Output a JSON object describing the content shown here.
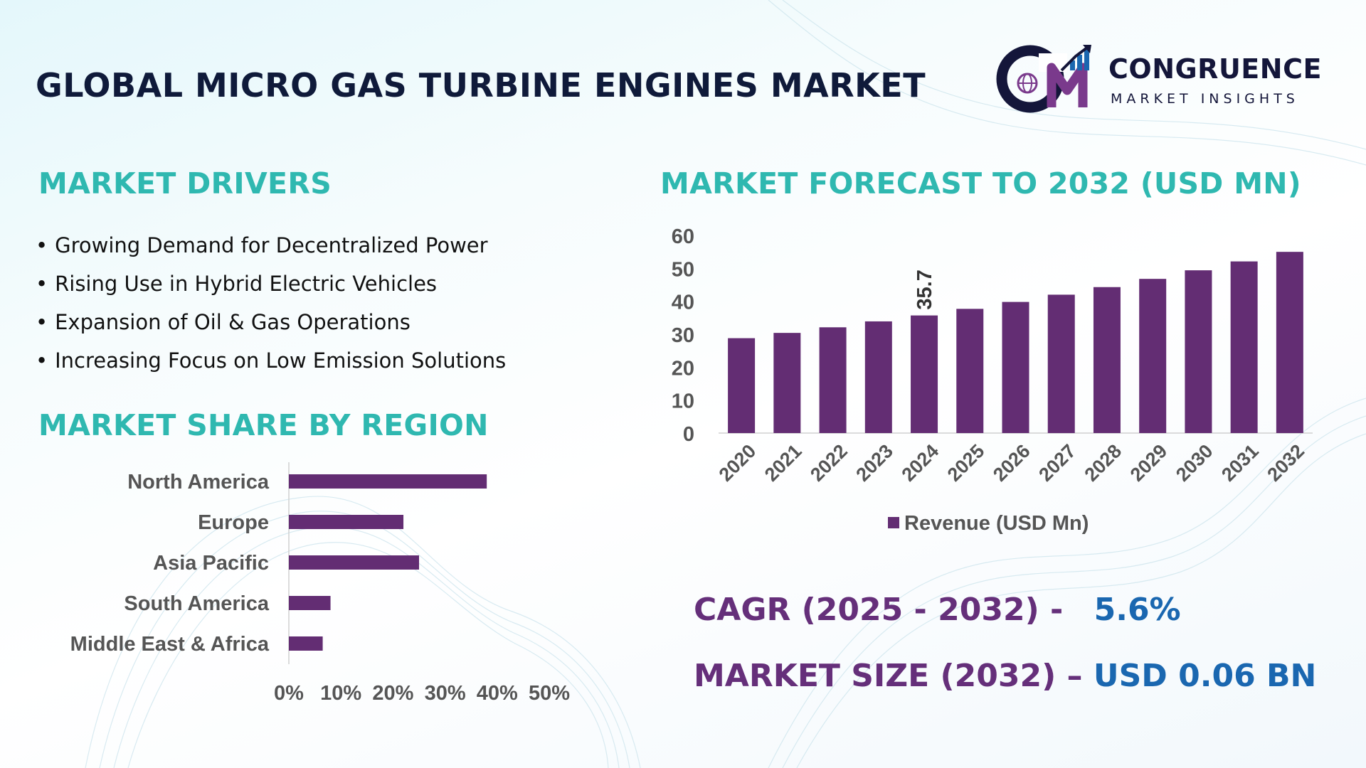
{
  "title": "GLOBAL MICRO GAS TURBINE ENGINES MARKET",
  "brand": {
    "name": "CONGRUENCE",
    "tagline": "MARKET INSIGHTS"
  },
  "drivers": {
    "title": "MARKET DRIVERS",
    "items": [
      "Growing Demand for Decentralized Power",
      "Rising Use in Hybrid Electric Vehicles",
      "Expansion of Oil & Gas Operations",
      "Increasing Focus on Low Emission Solutions"
    ]
  },
  "region": {
    "title": "MARKET SHARE BY REGION"
  },
  "forecast": {
    "title": "MARKET FORECAST TO 2032 (USD MN)"
  },
  "stats": {
    "cagr_label": "CAGR (2025 - 2032) -",
    "cagr_value": "5.6%",
    "size_label": "MARKET SIZE (2032) –",
    "size_value": "USD 0.06 BN"
  },
  "colors": {
    "bar": "#632d73",
    "accent": "#2fb8b0",
    "label": "#652f7a",
    "value": "#1a67b0"
  },
  "chart_data": [
    {
      "type": "bar",
      "orientation": "vertical",
      "categories": [
        "2020",
        "2021",
        "2022",
        "2023",
        "2024",
        "2025",
        "2026",
        "2027",
        "2028",
        "2029",
        "2030",
        "2031",
        "2032"
      ],
      "series": [
        {
          "name": "Revenue (USD Mn)",
          "values": [
            28.8,
            30.4,
            32.1,
            33.9,
            35.7,
            37.7,
            39.8,
            42.0,
            44.3,
            46.8,
            49.4,
            52.1,
            55.0
          ]
        }
      ],
      "data_labels": [
        {
          "category": "2024",
          "text": "35.7"
        }
      ],
      "yticks": [
        0,
        10,
        20,
        30,
        40,
        50,
        60
      ],
      "ylim": [
        0,
        60
      ],
      "legend": "bottom"
    },
    {
      "type": "bar",
      "orientation": "horizontal",
      "categories": [
        "North America",
        "Europe",
        "Asia Pacific",
        "South America",
        "Middle East & Africa"
      ],
      "values": [
        38,
        22,
        25,
        8,
        6.5
      ],
      "xticks": [
        "0%",
        "10%",
        "20%",
        "30%",
        "40%",
        "50%"
      ],
      "xlim": [
        0,
        50
      ]
    }
  ]
}
